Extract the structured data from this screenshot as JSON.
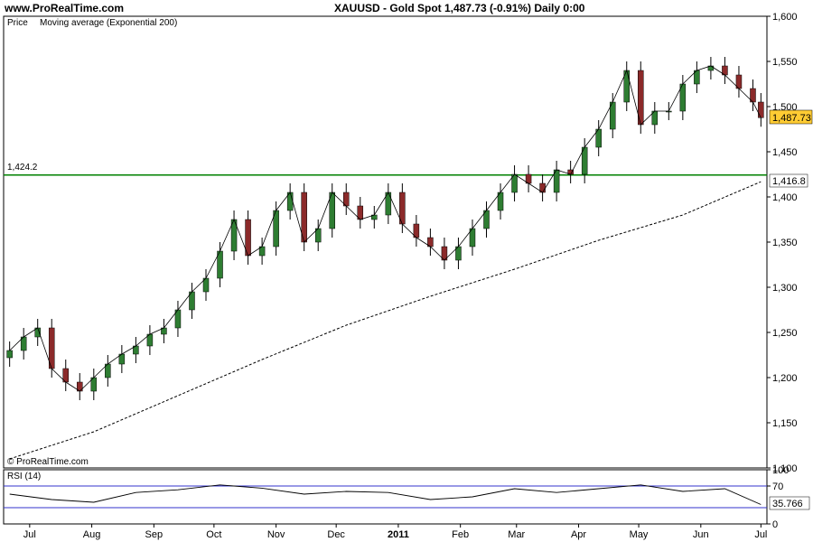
{
  "header": {
    "site": "www.ProRealTime.com",
    "title": "XAUUSD - Gold Spot    1,487.73 (-0.91%)    Daily  0:00"
  },
  "price_panel": {
    "label_price": "Price",
    "label_ma": "Moving average (Exponential 200)",
    "copyright": "© ProRealTime.com",
    "hline_label": "1,424.2",
    "current_price_label": "1,487.73",
    "ma_value_label": "1,416.8"
  },
  "rsi_panel": {
    "label": "RSI (14)",
    "value_label": "35.766"
  },
  "colors": {
    "green_line": "#008000",
    "up_candle": "#2e7d32",
    "down_candle": "#8b2a2a",
    "price_tag_bg": "#ffcc33",
    "rsi_level_line": "#3333cc",
    "rsi_overbought_fill": "#d9b3b3",
    "ma_line": "#000000"
  },
  "chart_data": [
    {
      "type": "line",
      "name": "XAUUSD daily (candlestick close path)",
      "x": [
        "2010-06-21",
        "2010-06-28",
        "2010-07-05",
        "2010-07-12",
        "2010-07-19",
        "2010-07-26",
        "2010-08-02",
        "2010-08-09",
        "2010-08-16",
        "2010-08-23",
        "2010-08-30",
        "2010-09-06",
        "2010-09-13",
        "2010-09-20",
        "2010-09-27",
        "2010-10-04",
        "2010-10-11",
        "2010-10-18",
        "2010-10-25",
        "2010-11-01",
        "2010-11-08",
        "2010-11-15",
        "2010-11-22",
        "2010-11-29",
        "2010-12-06",
        "2010-12-13",
        "2010-12-20",
        "2010-12-27",
        "2011-01-03",
        "2011-01-10",
        "2011-01-17",
        "2011-01-24",
        "2011-01-31",
        "2011-02-07",
        "2011-02-14",
        "2011-02-21",
        "2011-02-28",
        "2011-03-07",
        "2011-03-14",
        "2011-03-21",
        "2011-03-28",
        "2011-04-04",
        "2011-04-11",
        "2011-04-18",
        "2011-04-25",
        "2011-05-02",
        "2011-05-09",
        "2011-05-16",
        "2011-05-23",
        "2011-05-30",
        "2011-06-06",
        "2011-06-13",
        "2011-06-20",
        "2011-06-27",
        "2011-07-01"
      ],
      "series": [
        {
          "name": "Close",
          "values": [
            1230,
            1245,
            1255,
            1210,
            1195,
            1185,
            1200,
            1215,
            1226,
            1235,
            1248,
            1255,
            1275,
            1295,
            1310,
            1340,
            1375,
            1335,
            1345,
            1385,
            1405,
            1350,
            1365,
            1405,
            1390,
            1375,
            1380,
            1405,
            1370,
            1355,
            1345,
            1330,
            1345,
            1365,
            1385,
            1405,
            1425,
            1415,
            1405,
            1430,
            1425,
            1455,
            1475,
            1505,
            1540,
            1480,
            1495,
            1495,
            1525,
            1540,
            1545,
            1535,
            1520,
            1505,
            1487.73
          ]
        }
      ],
      "ylim": [
        1100,
        1600
      ],
      "y_ticks": [
        "1,100",
        "1,150",
        "1,200",
        "1,250",
        "1,300",
        "1,350",
        "1,400",
        "1,450",
        "1,500",
        "1,550",
        "1,600"
      ],
      "x_tick_labels": [
        "Jul",
        "Aug",
        "Sep",
        "Oct",
        "Nov",
        "Dec",
        "2011",
        "Feb",
        "Mar",
        "Apr",
        "May",
        "Jun",
        "Jul"
      ],
      "hline": 1424.2,
      "grid": false
    },
    {
      "type": "line",
      "name": "Moving average (Exponential 200)",
      "x": [
        "2010-06-21",
        "2010-08-02",
        "2010-09-13",
        "2010-10-25",
        "2010-12-06",
        "2011-01-17",
        "2011-02-28",
        "2011-04-11",
        "2011-05-23",
        "2011-07-01"
      ],
      "series": [
        {
          "name": "EMA 200",
          "values": [
            1110,
            1140,
            1180,
            1220,
            1258,
            1290,
            1320,
            1352,
            1380,
            1416.8
          ]
        }
      ],
      "ylim": [
        1100,
        1600
      ]
    },
    {
      "type": "line",
      "name": "RSI (14)",
      "x": [
        "2010-06-21",
        "2010-07-12",
        "2010-08-02",
        "2010-08-23",
        "2010-09-13",
        "2010-10-04",
        "2010-10-25",
        "2010-11-15",
        "2010-12-06",
        "2010-12-27",
        "2011-01-17",
        "2011-02-07",
        "2011-02-28",
        "2011-03-21",
        "2011-04-11",
        "2011-05-02",
        "2011-05-23",
        "2011-06-13",
        "2011-07-01"
      ],
      "series": [
        {
          "name": "RSI",
          "values": [
            55,
            45,
            40,
            58,
            63,
            72,
            66,
            55,
            60,
            58,
            45,
            50,
            65,
            58,
            65,
            72,
            60,
            65,
            35.766
          ]
        }
      ],
      "ylim": [
        0,
        100
      ],
      "y_ticks": [
        "0",
        "70",
        "100"
      ],
      "levels": [
        70,
        30
      ]
    }
  ]
}
